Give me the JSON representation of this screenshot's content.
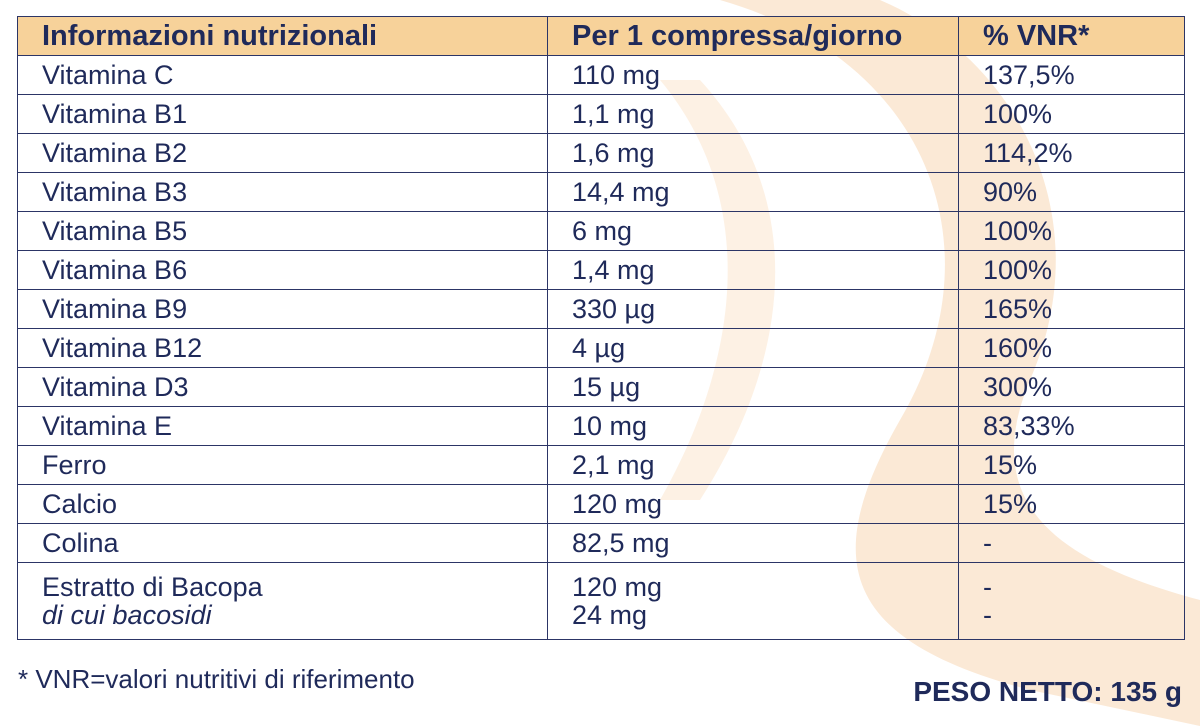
{
  "table": {
    "headers": [
      "Informazioni nutrizionali",
      "Per 1 compressa/giorno",
      "% VNR*"
    ],
    "rows": [
      {
        "name": "Vitamina C",
        "amount": "110 mg",
        "vnr": "137,5%"
      },
      {
        "name": "Vitamina B1",
        "amount": "1,1 mg",
        "vnr": "100%"
      },
      {
        "name": "Vitamina B2",
        "amount": "1,6 mg",
        "vnr": "114,2%"
      },
      {
        "name": "Vitamina B3",
        "amount": "14,4 mg",
        "vnr": "90%"
      },
      {
        "name": "Vitamina B5",
        "amount": "6 mg",
        "vnr": "100%"
      },
      {
        "name": "Vitamina B6",
        "amount": "1,4 mg",
        "vnr": "100%"
      },
      {
        "name": "Vitamina B9",
        "amount": "330 µg",
        "vnr": "165%"
      },
      {
        "name": "Vitamina B12",
        "amount": "4 µg",
        "vnr": "160%"
      },
      {
        "name": "Vitamina D3",
        "amount": "15 µg",
        "vnr": "300%"
      },
      {
        "name": "Vitamina E",
        "amount": "10 mg",
        "vnr": "83,33%"
      },
      {
        "name": "Ferro",
        "amount": "2,1 mg",
        "vnr": "15%"
      },
      {
        "name": "Calcio",
        "amount": "120 mg",
        "vnr": "15%"
      },
      {
        "name": "Colina",
        "amount": "82,5 mg",
        "vnr": "-"
      }
    ],
    "last_row": {
      "name": "Estratto di Bacopa",
      "sub_name": "di cui bacosidi",
      "amount": "120 mg",
      "sub_amount": "24 mg",
      "vnr": "-",
      "sub_vnr": "-"
    }
  },
  "footnote": "* VNR=valori nutritivi di riferimento",
  "net_weight": "PESO NETTO: 135 g",
  "colors": {
    "header_bg": "#f7d29a",
    "text": "#1f2a5a",
    "border": "#2c3566",
    "swoosh": "#fbe9d6"
  }
}
